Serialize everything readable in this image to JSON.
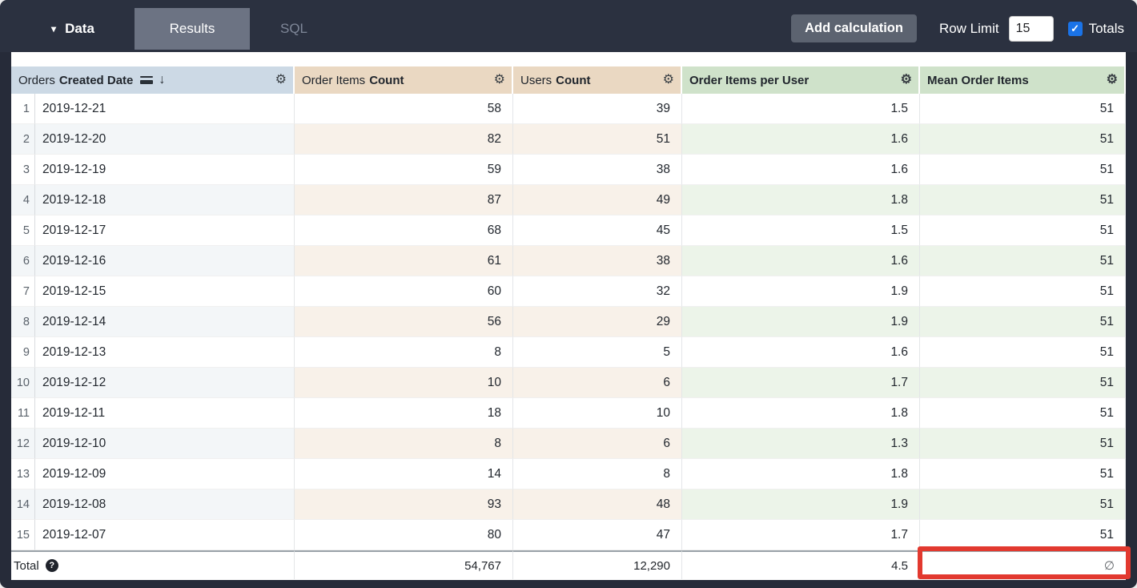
{
  "topbar": {
    "data_label": "Data",
    "tabs": [
      {
        "label": "Results",
        "active": true
      },
      {
        "label": "SQL",
        "active": false
      }
    ],
    "add_calculation_label": "Add calculation",
    "row_limit_label": "Row Limit",
    "row_limit_value": "15",
    "totals_label": "Totals",
    "totals_checked": true
  },
  "table": {
    "columns": [
      {
        "view": "Orders",
        "field": "Created Date",
        "type": "dimension",
        "sorted": "descending",
        "icons": [
          "group-bars-icon",
          "sort-desc-arrow",
          "gear-icon"
        ]
      },
      {
        "view": "Order Items",
        "field": "Count",
        "type": "measure",
        "icons": [
          "gear-icon"
        ]
      },
      {
        "view": "Users",
        "field": "Count",
        "type": "measure",
        "icons": [
          "gear-icon"
        ]
      },
      {
        "view": "",
        "field": "Order Items per User",
        "type": "calculation",
        "icons": [
          "gear-icon"
        ]
      },
      {
        "view": "",
        "field": "Mean Order Items",
        "type": "calculation",
        "icons": [
          "gear-icon"
        ]
      }
    ],
    "rows": [
      {
        "num": "1",
        "date": "2019-12-21",
        "order_items_count": "58",
        "users_count": "39",
        "order_items_per_user": "1.5",
        "mean_order_items": "51"
      },
      {
        "num": "2",
        "date": "2019-12-20",
        "order_items_count": "82",
        "users_count": "51",
        "order_items_per_user": "1.6",
        "mean_order_items": "51"
      },
      {
        "num": "3",
        "date": "2019-12-19",
        "order_items_count": "59",
        "users_count": "38",
        "order_items_per_user": "1.6",
        "mean_order_items": "51"
      },
      {
        "num": "4",
        "date": "2019-12-18",
        "order_items_count": "87",
        "users_count": "49",
        "order_items_per_user": "1.8",
        "mean_order_items": "51"
      },
      {
        "num": "5",
        "date": "2019-12-17",
        "order_items_count": "68",
        "users_count": "45",
        "order_items_per_user": "1.5",
        "mean_order_items": "51"
      },
      {
        "num": "6",
        "date": "2019-12-16",
        "order_items_count": "61",
        "users_count": "38",
        "order_items_per_user": "1.6",
        "mean_order_items": "51"
      },
      {
        "num": "7",
        "date": "2019-12-15",
        "order_items_count": "60",
        "users_count": "32",
        "order_items_per_user": "1.9",
        "mean_order_items": "51"
      },
      {
        "num": "8",
        "date": "2019-12-14",
        "order_items_count": "56",
        "users_count": "29",
        "order_items_per_user": "1.9",
        "mean_order_items": "51"
      },
      {
        "num": "9",
        "date": "2019-12-13",
        "order_items_count": "8",
        "users_count": "5",
        "order_items_per_user": "1.6",
        "mean_order_items": "51"
      },
      {
        "num": "10",
        "date": "2019-12-12",
        "order_items_count": "10",
        "users_count": "6",
        "order_items_per_user": "1.7",
        "mean_order_items": "51"
      },
      {
        "num": "11",
        "date": "2019-12-11",
        "order_items_count": "18",
        "users_count": "10",
        "order_items_per_user": "1.8",
        "mean_order_items": "51"
      },
      {
        "num": "12",
        "date": "2019-12-10",
        "order_items_count": "8",
        "users_count": "6",
        "order_items_per_user": "1.3",
        "mean_order_items": "51"
      },
      {
        "num": "13",
        "date": "2019-12-09",
        "order_items_count": "14",
        "users_count": "8",
        "order_items_per_user": "1.8",
        "mean_order_items": "51"
      },
      {
        "num": "14",
        "date": "2019-12-08",
        "order_items_count": "93",
        "users_count": "48",
        "order_items_per_user": "1.9",
        "mean_order_items": "51"
      },
      {
        "num": "15",
        "date": "2019-12-07",
        "order_items_count": "80",
        "users_count": "47",
        "order_items_per_user": "1.7",
        "mean_order_items": "51"
      }
    ],
    "total": {
      "label": "Total",
      "order_items_count": "54,767",
      "users_count": "12,290",
      "order_items_per_user": "4.5",
      "mean_order_items": "∅"
    }
  },
  "icons": {
    "check": "✓",
    "caret_down": "▾",
    "gear": "⚙",
    "sort_desc": "↓",
    "question": "?",
    "null_symbol": "∅"
  },
  "colors": {
    "topbar_bg": "#2b3140",
    "active_tab_bg": "#6c7383",
    "checkbox_blue": "#1a73e8",
    "dimension_header_bg": "#ccd9e5",
    "measure_header_bg": "#ead8c2",
    "calculation_header_bg": "#cfe2ca",
    "annotation_red": "#e2392f"
  }
}
